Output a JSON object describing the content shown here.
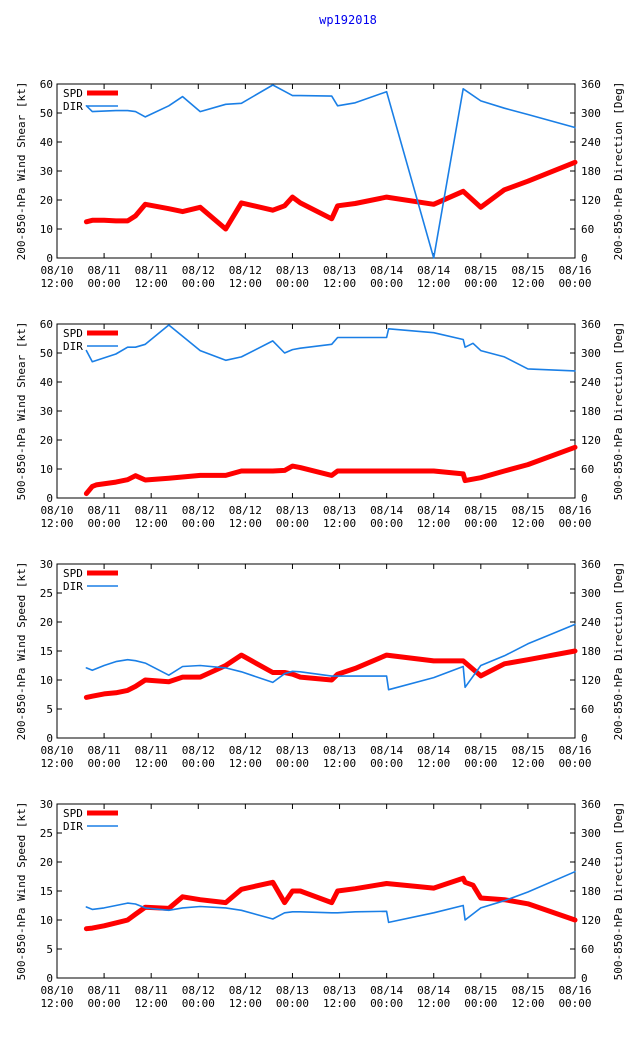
{
  "figure": {
    "title": "wp192018"
  },
  "colors": {
    "spd": "#ff0000",
    "dir": "#1a7fe6",
    "title": "#0000ee"
  },
  "x_ticks": [
    {
      "line1": "08/10",
      "line2": "12:00",
      "t": 0
    },
    {
      "line1": "08/11",
      "line2": "00:00",
      "t": 12
    },
    {
      "line1": "08/11",
      "line2": "12:00",
      "t": 24
    },
    {
      "line1": "08/12",
      "line2": "00:00",
      "t": 36
    },
    {
      "line1": "08/12",
      "line2": "12:00",
      "t": 48
    },
    {
      "line1": "08/13",
      "line2": "00:00",
      "t": 60
    },
    {
      "line1": "08/13",
      "line2": "12:00",
      "t": 72
    },
    {
      "line1": "08/14",
      "line2": "00:00",
      "t": 84
    },
    {
      "line1": "08/14",
      "line2": "12:00",
      "t": 96
    },
    {
      "line1": "08/15",
      "line2": "00:00",
      "t": 108
    },
    {
      "line1": "08/15",
      "line2": "12:00",
      "t": 120
    },
    {
      "line1": "08/16",
      "line2": "00:00",
      "t": 132
    }
  ],
  "chart_data": [
    {
      "type": "line",
      "title": "",
      "xlabel": "",
      "ylabel": "200-850-hPa Wind Shear [kt]",
      "y2label": "200-850-hPa Direction [Deg]",
      "xlim": [
        0,
        132
      ],
      "ylim": [
        0,
        60
      ],
      "y2lim": [
        0,
        360
      ],
      "yticks": [
        0,
        10,
        20,
        30,
        40,
        50,
        60
      ],
      "y2ticks": [
        0,
        60,
        120,
        180,
        240,
        300,
        360
      ],
      "legend": [
        "SPD",
        "DIR"
      ],
      "series": [
        {
          "name": "SPD",
          "axis": "left",
          "x": [
            7.5,
            9,
            12,
            15,
            18,
            20,
            22.5,
            28.5,
            32,
            36.5,
            43,
            47,
            55,
            58,
            60,
            62,
            70,
            71.5,
            76,
            84,
            96,
            103.5,
            108,
            114,
            120,
            132
          ],
          "y": [
            12.5,
            13,
            13,
            12.8,
            12.8,
            14.5,
            18.5,
            17,
            16,
            17.5,
            10,
            19,
            16.5,
            18,
            21,
            19,
            13.5,
            18,
            18.8,
            21,
            18.5,
            23,
            17.5,
            23.5,
            26.5,
            33
          ]
        },
        {
          "name": "DIR",
          "axis": "right",
          "x": [
            7.5,
            9,
            12,
            15,
            18,
            20,
            22.5,
            28.5,
            32,
            36.5,
            43,
            47,
            55,
            58,
            60,
            62,
            70,
            71.5,
            76,
            84,
            96,
            103.5,
            108,
            114,
            120,
            132
          ],
          "y": [
            315,
            303,
            304,
            305,
            305,
            303,
            292,
            315,
            334,
            303,
            318,
            320,
            358,
            345,
            336,
            336,
            335,
            315,
            321,
            344,
            0,
            350,
            325,
            310,
            297,
            270
          ]
        }
      ]
    },
    {
      "type": "line",
      "title": "",
      "xlabel": "",
      "ylabel": "500-850-hPa Wind Shear [kt]",
      "y2label": "500-850-hPa Direction [Deg]",
      "xlim": [
        0,
        132
      ],
      "ylim": [
        0,
        60
      ],
      "y2lim": [
        0,
        360
      ],
      "yticks": [
        0,
        10,
        20,
        30,
        40,
        50,
        60
      ],
      "y2ticks": [
        0,
        60,
        120,
        180,
        240,
        300,
        360
      ],
      "legend": [
        "SPD",
        "DIR"
      ],
      "series": [
        {
          "name": "SPD",
          "axis": "left",
          "x": [
            7.5,
            9,
            10,
            15,
            18,
            20,
            22.5,
            28.5,
            36.5,
            43,
            47,
            55,
            58,
            60,
            62,
            70,
            71.5,
            76,
            84,
            96,
            103.5,
            104,
            108,
            114,
            120,
            132
          ],
          "y": [
            1.5,
            4,
            4.5,
            5.5,
            6.3,
            7.7,
            6.2,
            6.8,
            7.8,
            7.8,
            9.3,
            9.3,
            9.5,
            11,
            10.5,
            7.8,
            9.3,
            9.3,
            9.3,
            9.3,
            8.3,
            6,
            7,
            9.3,
            11.5,
            17.5
          ]
        },
        {
          "name": "DIR",
          "axis": "right",
          "x": [
            7.5,
            9,
            15,
            18,
            20,
            22.5,
            28.5,
            36.5,
            43,
            47,
            55,
            58,
            60,
            62,
            70,
            71.5,
            76,
            84,
            84.5,
            96,
            103.5,
            104,
            106,
            108,
            114,
            120,
            132
          ],
          "y": [
            305,
            282,
            298,
            312,
            312,
            318,
            358,
            305,
            285,
            292,
            325,
            300,
            307,
            310,
            318,
            332,
            332,
            332,
            350,
            342,
            328,
            312,
            320,
            305,
            292,
            267,
            263
          ]
        }
      ]
    },
    {
      "type": "line",
      "title": "",
      "xlabel": "",
      "ylabel": "200-850-hPa Wind Speed [kt]",
      "y2label": "200-850-hPa Direction [Deg]",
      "xlim": [
        0,
        132
      ],
      "ylim": [
        0,
        30
      ],
      "y2lim": [
        0,
        360
      ],
      "yticks": [
        0,
        5,
        10,
        15,
        20,
        25,
        30
      ],
      "y2ticks": [
        0,
        60,
        120,
        180,
        240,
        300,
        360
      ],
      "legend": [
        "SPD",
        "DIR"
      ],
      "series": [
        {
          "name": "SPD",
          "axis": "left",
          "x": [
            7.5,
            9,
            12,
            15,
            18,
            20,
            22.5,
            28.5,
            32,
            36.5,
            43,
            47,
            55,
            58,
            60,
            62,
            70,
            71.5,
            76,
            84,
            96,
            103.5,
            108,
            114,
            120,
            132
          ],
          "y": [
            7,
            7.2,
            7.6,
            7.8,
            8.2,
            8.9,
            10,
            9.7,
            10.5,
            10.5,
            12.5,
            14.3,
            11.3,
            11.3,
            11,
            10.5,
            10,
            11,
            12,
            14.3,
            13.3,
            13.3,
            10.7,
            12.8,
            13.5,
            15
          ]
        },
        {
          "name": "DIR",
          "axis": "right",
          "x": [
            7.5,
            9,
            12,
            15,
            18,
            20,
            22.5,
            28.5,
            32,
            36.5,
            43,
            47,
            55,
            58,
            60,
            62,
            70,
            71.5,
            76,
            84,
            84.5,
            96,
            103.5,
            104,
            108,
            114,
            120,
            132
          ],
          "y": [
            145,
            140,
            150,
            158,
            162,
            160,
            155,
            130,
            148,
            150,
            145,
            137,
            115,
            133,
            138,
            137,
            128,
            128,
            128,
            128,
            100,
            125,
            148,
            105,
            150,
            170,
            195,
            235
          ]
        }
      ]
    },
    {
      "type": "line",
      "title": "",
      "xlabel": "",
      "ylabel": "500-850-hPa Wind Speed [kt]",
      "y2label": "500-850-hPa Direction [Deg]",
      "xlim": [
        0,
        132
      ],
      "ylim": [
        0,
        30
      ],
      "y2lim": [
        0,
        360
      ],
      "yticks": [
        0,
        5,
        10,
        15,
        20,
        25,
        30
      ],
      "y2ticks": [
        0,
        60,
        120,
        180,
        240,
        300,
        360
      ],
      "legend": [
        "SPD",
        "DIR"
      ],
      "series": [
        {
          "name": "SPD",
          "axis": "left",
          "x": [
            7.5,
            9,
            12,
            15,
            18,
            20,
            22.5,
            28.5,
            32,
            36.5,
            43,
            47,
            55,
            58,
            60,
            62,
            70,
            71.5,
            76,
            84,
            96,
            103.5,
            104,
            106,
            108,
            114,
            120,
            132
          ],
          "y": [
            8.5,
            8.6,
            9,
            9.5,
            10,
            11,
            12.2,
            12,
            14,
            13.5,
            13,
            15.3,
            16.5,
            13,
            15,
            15,
            13,
            15,
            15.4,
            16.3,
            15.5,
            17.2,
            16.5,
            16,
            13.8,
            13.5,
            12.8,
            10
          ]
        },
        {
          "name": "DIR",
          "axis": "right",
          "x": [
            7.5,
            9,
            12,
            15,
            18,
            20,
            22.5,
            28.5,
            32,
            36.5,
            43,
            47,
            55,
            58,
            60,
            62,
            70,
            71.5,
            76,
            84,
            84.5,
            96,
            103.5,
            104,
            108,
            114,
            120,
            132
          ],
          "y": [
            147,
            142,
            145,
            150,
            155,
            153,
            145,
            140,
            145,
            148,
            145,
            140,
            122,
            135,
            137,
            137,
            135,
            135,
            137,
            138,
            115,
            135,
            150,
            120,
            145,
            160,
            178,
            220
          ]
        }
      ]
    }
  ]
}
